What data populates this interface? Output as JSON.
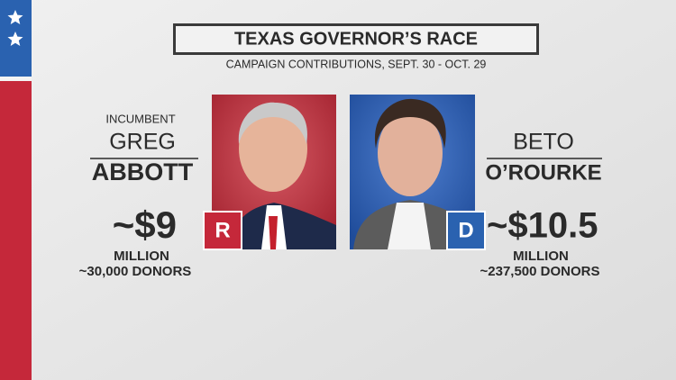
{
  "header": {
    "title": "TEXAS GOVERNOR’S RACE",
    "subtitle": "CAMPAIGN CONTRIBUTIONS, SEPT. 30 - OCT. 29"
  },
  "candidates": [
    {
      "tag": "INCUMBENT",
      "first_name": "GREG",
      "last_name": "ABBOTT",
      "amount": "~$9",
      "unit": "MILLION",
      "donors": "~30,000 DONORS",
      "party": "R"
    },
    {
      "first_name": "BETO",
      "last_name": "O’ROURKE",
      "amount": "~$10.5",
      "unit": "MILLION",
      "donors": "~237,500 DONORS",
      "party": "D"
    }
  ]
}
